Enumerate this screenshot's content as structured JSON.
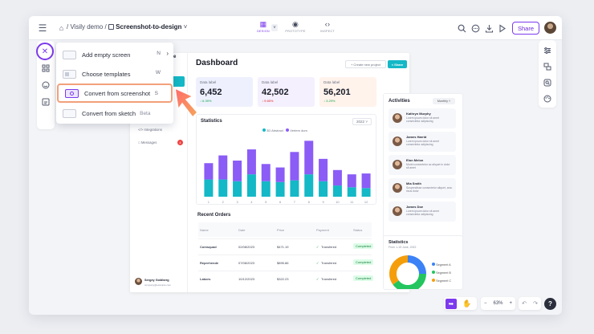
{
  "breadcrumb": {
    "project": "Visily demo",
    "separator": "/",
    "file": "Screenshot-to-design"
  },
  "modes": [
    {
      "label": "DESIGN",
      "active": true
    },
    {
      "label": "PROTOTYPE",
      "active": false
    },
    {
      "label": "INSPECT",
      "active": false
    }
  ],
  "share_label": "Share",
  "menu": {
    "items": [
      {
        "label": "Add empty screen",
        "key": "N",
        "has_submenu": true
      },
      {
        "label": "Choose templates",
        "key": "W"
      },
      {
        "label": "Convert from screenshot",
        "key": "S",
        "highlighted": true
      },
      {
        "label": "Convert from sketch",
        "tag": "Beta"
      }
    ]
  },
  "canvas": {
    "sidebar": {
      "title_fragment": "e",
      "items": [
        "Integrations",
        "Messages"
      ],
      "messages_badge": "4",
      "user_name": "Sergey Goldberg",
      "user_email": "company@example.com"
    },
    "title": "Dashboard",
    "create_label": "+ Create new project",
    "share_label": "Share",
    "cards": [
      {
        "label": "Data label",
        "value": "6,452",
        "change": "↓ 6.39%",
        "color": "#2563eb",
        "bg": "#eef1fd",
        "change_color": "#16a34a"
      },
      {
        "label": "Data label",
        "value": "42,502",
        "change": "↓ 9.65%",
        "color": "#dc2626",
        "bg": "#f5f0fd",
        "change_color": "#dc2626"
      },
      {
        "label": "Data label",
        "value": "56,201",
        "change": "↓ 3.29%",
        "color": "#16a34a",
        "bg": "#fff3ec",
        "change_color": "#16a34a"
      }
    ],
    "statistics": {
      "title": "Statistics",
      "year": "2022",
      "legend": [
        "3D Abstract",
        "Vertem dum"
      ]
    },
    "activities": {
      "title": "Activities",
      "filter": "Monthly",
      "items": [
        {
          "name": "Kathryn Murphy",
          "text": "Lorem ipsum dolor sit amet consectetur adipiscing"
        },
        {
          "name": "James Harrid",
          "text": "Lorem ipsum dolor sit amet consectetur adipiscing"
        },
        {
          "name": "Elon Melon",
          "text": "Morbi consectetur ac aliquet in dolor sit amet"
        },
        {
          "name": "Mia Smith",
          "text": "Suspendisse consectetur aliquet, arcu risus dolor"
        },
        {
          "name": "James Doe",
          "text": "Lorem ipsum dolor sit amet consectetur adipiscing"
        }
      ]
    },
    "orders": {
      "title": "Recent Orders",
      "headers": [
        "Name",
        "Date",
        "Price",
        "Payment",
        "Status"
      ],
      "rows": [
        {
          "name": "Coinsquad",
          "date": "02/08/2023",
          "price": "$471.19",
          "payment": "Transfered",
          "status": "Completed"
        },
        {
          "name": "Reprehende",
          "date": "07/08/2023",
          "price": "$895.86",
          "payment": "Transfered",
          "status": "Completed"
        },
        {
          "name": "Labors",
          "date": "10/12/2023",
          "price": "$322.23",
          "payment": "Transfered",
          "status": "Completed"
        }
      ]
    },
    "donut": {
      "title": "Statistics",
      "subtitle": "From 1-15 June, 2022",
      "segments": [
        {
          "label": "Segment A",
          "value": 25,
          "color": "#3b82f6"
        },
        {
          "label": "Segment B",
          "value": 40,
          "color": "#22c55e"
        },
        {
          "label": "Segment C",
          "value": 35,
          "color": "#f59e0b"
        }
      ]
    }
  },
  "chart_data": {
    "type": "bar",
    "title": "Statistics",
    "categories": [
      "1",
      "2",
      "3",
      "4",
      "5",
      "6",
      "7",
      "8",
      "9",
      "10",
      "11",
      "12"
    ],
    "series": [
      {
        "name": "3D Abstract",
        "color": "#14b8c6",
        "values": [
          20,
          20,
          18,
          26,
          18,
          17,
          19,
          26,
          18,
          13,
          11,
          10
        ]
      },
      {
        "name": "Vertem dum",
        "color": "#8b5cf6",
        "values": [
          19,
          28,
          24,
          29,
          20,
          17,
          33,
          39,
          26,
          18,
          15,
          17
        ]
      }
    ],
    "ylim": [
      0,
      70
    ]
  },
  "zoom": "63%",
  "help": "?"
}
